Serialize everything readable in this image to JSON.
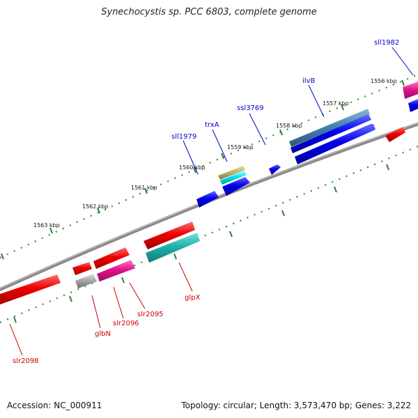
{
  "title": "Synechocystis sp. PCC 6803, complete genome",
  "footer": {
    "accession": "Accession: NC_000911",
    "summary": "Topology: circular; Length: 3,573,470 bp; Genes: 3,222"
  },
  "colors": {
    "backbone": "#808080",
    "ticks": "#2e7d32",
    "forward_label": "#0000cc",
    "reverse_label": "#cc0000",
    "blue_gene": "#0000ee",
    "red_gene": "#ee0000",
    "cyan_gene": "#20b2aa",
    "magenta_gene": "#e0148c",
    "steel_gene": "#4682b4",
    "gray_gene": "#a9a9a9",
    "tan_gene": "#bdb76b",
    "aqua_gene": "#00e5ee"
  },
  "kbp_labels": [
    "1556 kbp",
    "1557 kbp",
    "1558 kbp",
    "1559 kbp",
    "1560 kbp",
    "1561 kbp",
    "1562 kbp",
    "1563 kbp"
  ],
  "gene_labels": {
    "forward": [
      "sll1982",
      "ilvB",
      "ssl3769",
      "trxA",
      "sll1979"
    ],
    "reverse": [
      "slr2098",
      "glbN",
      "slr2096",
      "slr2095",
      "glpX"
    ]
  }
}
